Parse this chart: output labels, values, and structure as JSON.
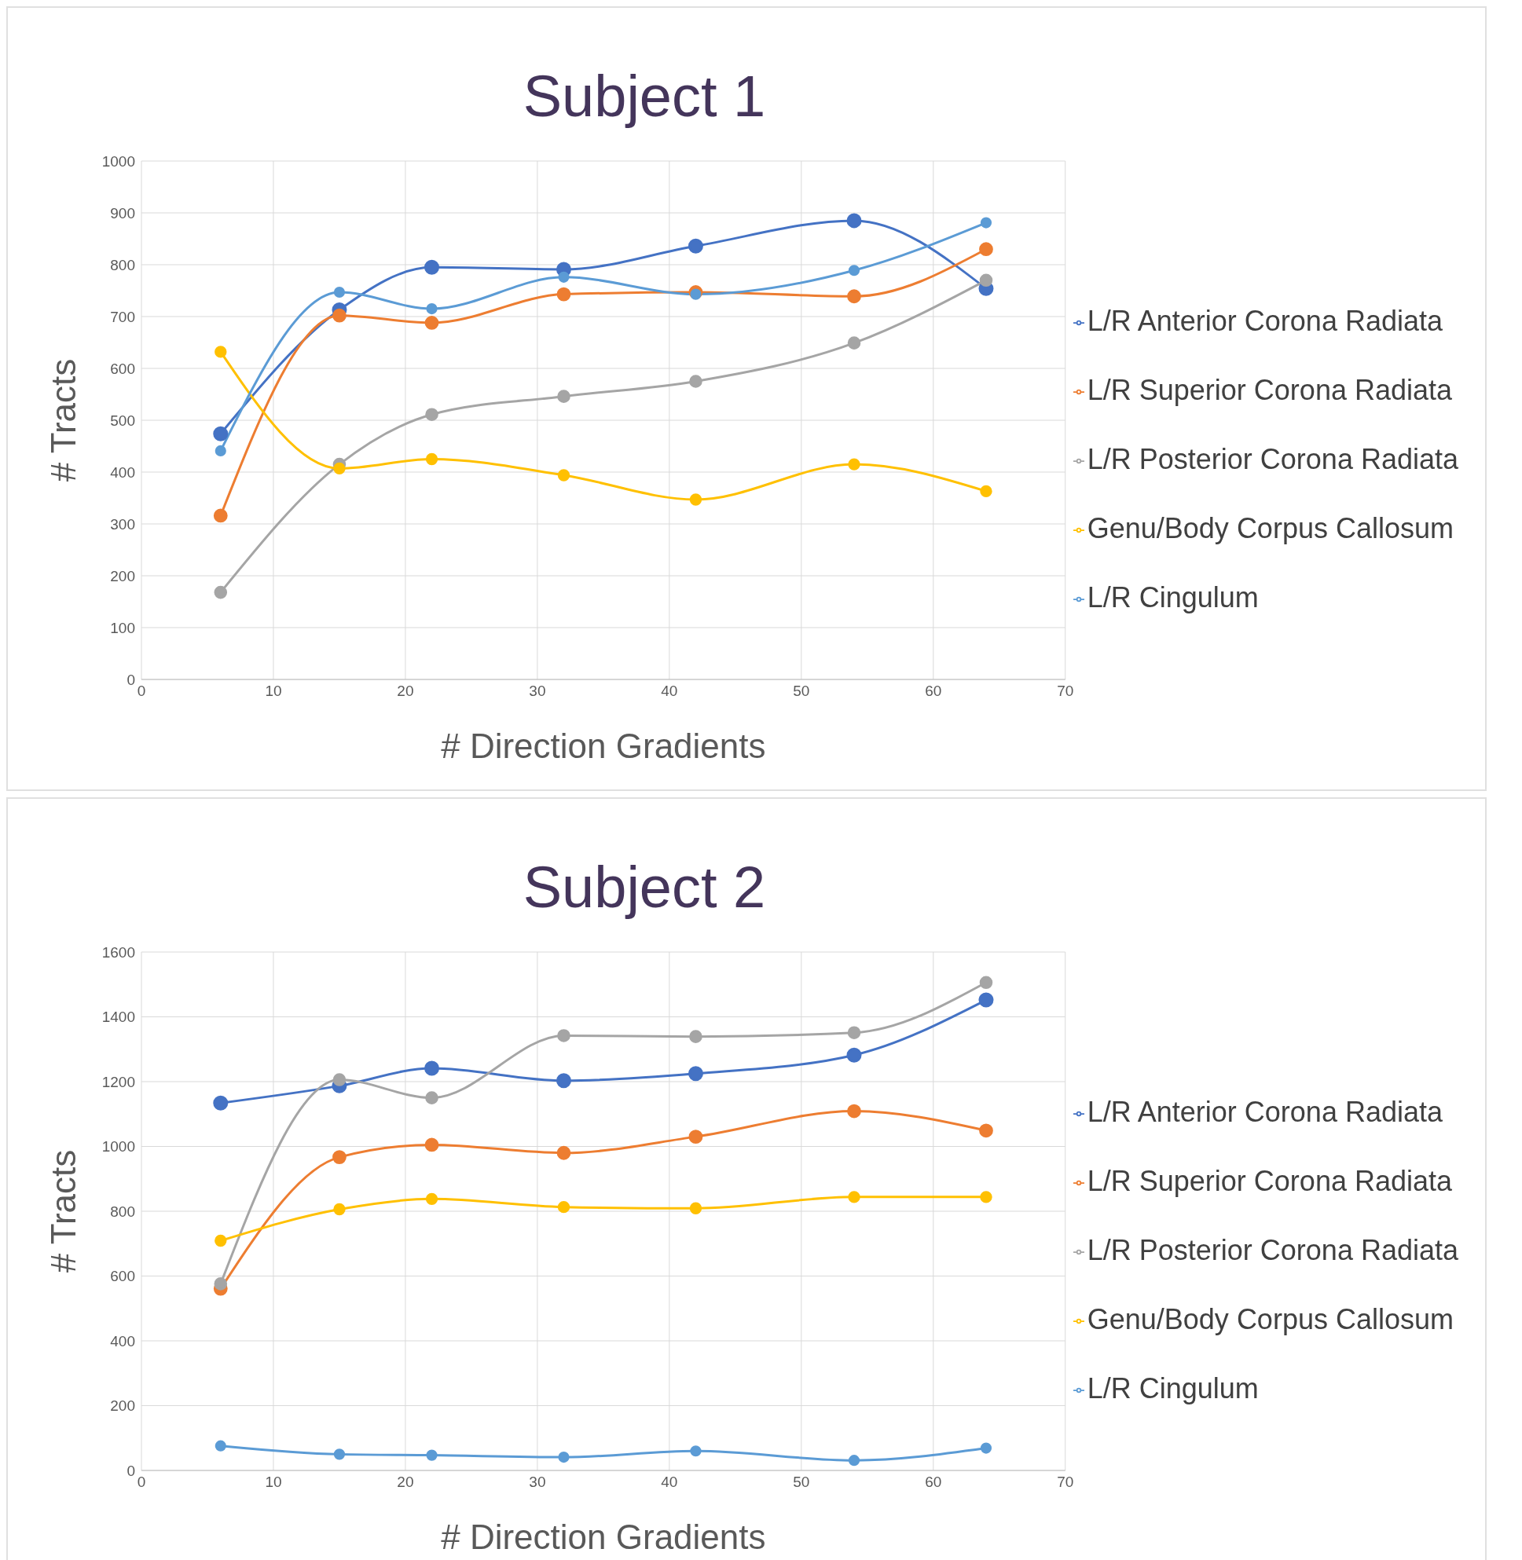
{
  "chart_data": [
    {
      "type": "line",
      "title": "Subject 1",
      "xlabel": "# Direction Gradients",
      "ylabel": "# Tracts",
      "x": [
        6,
        15,
        22,
        32,
        42,
        54,
        64
      ],
      "xlim": [
        0,
        70
      ],
      "xticks": [
        0,
        10,
        20,
        30,
        40,
        50,
        60,
        70
      ],
      "ylim": [
        0,
        1000
      ],
      "yticks": [
        0,
        100,
        200,
        300,
        400,
        500,
        600,
        700,
        800,
        900,
        1000
      ],
      "grid": true,
      "legend": "right",
      "marker": "circle",
      "line_style": "solid",
      "series": [
        {
          "name": "L/R Anterior Corona Radiata",
          "color": "#4472c4",
          "values": [
            474,
            713,
            795,
            791,
            836,
            885,
            754
          ]
        },
        {
          "name": "L/R Superior Corona Radiata",
          "color": "#ed7d31",
          "values": [
            316,
            702,
            688,
            743,
            747,
            739,
            830
          ]
        },
        {
          "name": "L/R Posterior Corona Radiata",
          "color": "#a5a5a5",
          "values": [
            168,
            415,
            511,
            546,
            575,
            649,
            770
          ]
        },
        {
          "name": "Genu/Body Corpus Callosum",
          "color": "#ffc000",
          "values": [
            632,
            407,
            425,
            394,
            347,
            415,
            363
          ]
        },
        {
          "name": "L/R Cingulum",
          "color": "#5b9bd5",
          "values": [
            441,
            747,
            715,
            776,
            743,
            789,
            881
          ]
        }
      ]
    },
    {
      "type": "line",
      "title": "Subject 2",
      "xlabel": "# Direction Gradients",
      "ylabel": "# Tracts",
      "x": [
        6,
        15,
        22,
        32,
        42,
        54,
        64
      ],
      "xlim": [
        0,
        70
      ],
      "xticks": [
        0,
        10,
        20,
        30,
        40,
        50,
        60,
        70
      ],
      "ylim": [
        0,
        1600
      ],
      "yticks": [
        0,
        200,
        400,
        600,
        800,
        1000,
        1200,
        1400,
        1600
      ],
      "grid": true,
      "legend": "right",
      "marker": "circle",
      "line_style": "solid",
      "series": [
        {
          "name": "L/R Anterior Corona Radiata",
          "color": "#4472c4",
          "values": [
            1134,
            1187,
            1241,
            1203,
            1225,
            1282,
            1452
          ]
        },
        {
          "name": "L/R Superior Corona Radiata",
          "color": "#ed7d31",
          "values": [
            561,
            967,
            1005,
            980,
            1030,
            1109,
            1049
          ]
        },
        {
          "name": "L/R Posterior Corona Radiata",
          "color": "#a5a5a5",
          "values": [
            576,
            1206,
            1150,
            1342,
            1339,
            1351,
            1506
          ]
        },
        {
          "name": "Genu/Body Corpus Callosum",
          "color": "#ffc000",
          "values": [
            709,
            806,
            838,
            813,
            809,
            844,
            844
          ]
        },
        {
          "name": "L/R Cingulum",
          "color": "#5b9bd5",
          "values": [
            76,
            50,
            47,
            41,
            60,
            31,
            69
          ]
        }
      ]
    }
  ]
}
